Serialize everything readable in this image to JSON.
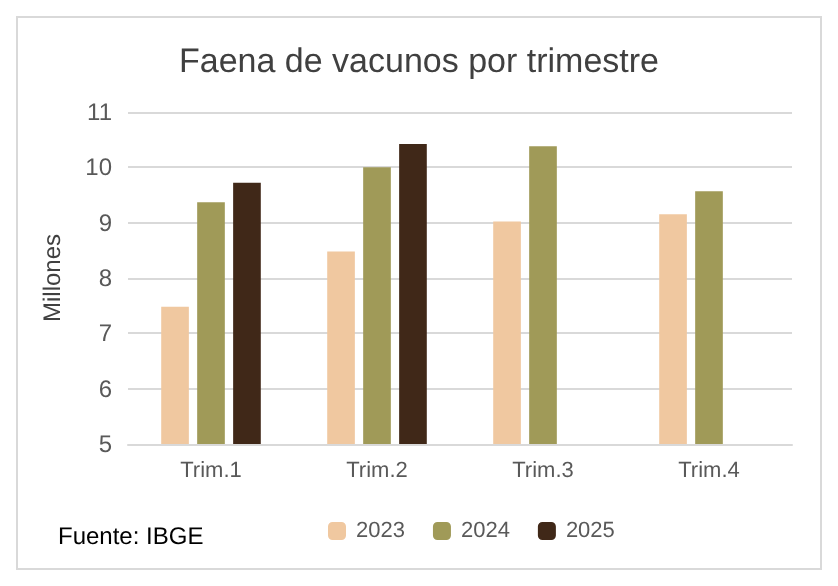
{
  "chart_data": {
    "type": "bar",
    "title": "Faena de vacunos por trimestre",
    "ylabel": "Millones",
    "categories": [
      "Trim.1",
      "Trim.2",
      "Trim.3",
      "Trim.4"
    ],
    "series": [
      {
        "name": "2023",
        "color": "#f0c8a0",
        "values": [
          7.48,
          8.48,
          9.02,
          9.15
        ]
      },
      {
        "name": "2024",
        "color": "#a09a58",
        "values": [
          9.37,
          10.0,
          10.38,
          9.57
        ]
      },
      {
        "name": "2025",
        "color": "#402818",
        "values": [
          9.72,
          10.42,
          null,
          null
        ]
      }
    ],
    "ylim": [
      5,
      11
    ],
    "yticks": [
      5,
      6,
      7,
      8,
      9,
      10,
      11
    ],
    "grid": "y",
    "legend": "bottom",
    "annotations": [
      "Fuente: IBGE"
    ]
  }
}
